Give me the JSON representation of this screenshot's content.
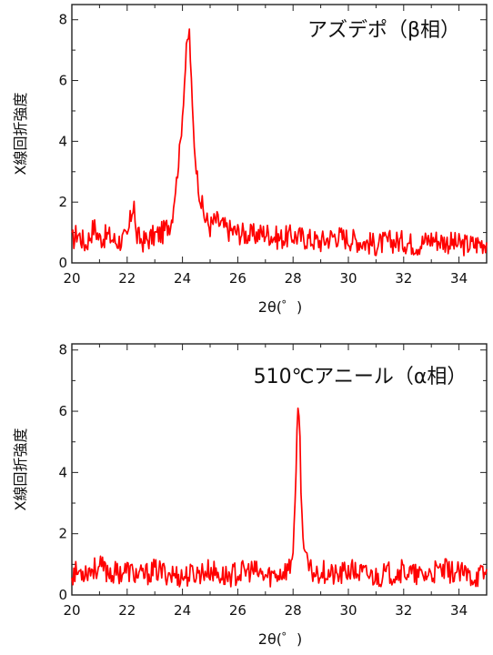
{
  "chart_data": [
    {
      "type": "line",
      "title": "アズデポ（β相）",
      "xlabel": "2θ(゜)",
      "ylabel": "X線回折強度",
      "xlim": [
        20,
        35
      ],
      "ylim": [
        0,
        8.5
      ],
      "xticks": [
        "20",
        "22",
        "24",
        "26",
        "28",
        "30",
        "32",
        "34"
      ],
      "yticks": [
        "0",
        "2",
        "4",
        "6",
        "8"
      ],
      "grid": false,
      "legend": "none",
      "color": "#ff0000",
      "series": [
        {
          "x": [
            20.0,
            20.2,
            20.5,
            20.8,
            21.0,
            21.3,
            21.6,
            22.0,
            22.25,
            22.3,
            22.6,
            23.0,
            23.3,
            23.6,
            23.8,
            23.95,
            24.05,
            24.15,
            24.25,
            24.35,
            24.45,
            24.6,
            24.8,
            25.0,
            25.2,
            25.6,
            26.0,
            26.5,
            27.0,
            27.5,
            28.0,
            28.5,
            29.0,
            29.5,
            30.0,
            30.5,
            31.0,
            31.5,
            32.0,
            32.5,
            33.0,
            33.5,
            34.0,
            34.5,
            35.0
          ],
          "y": [
            0.7,
            1.0,
            0.6,
            1.2,
            0.8,
            0.9,
            0.7,
            0.8,
            2.1,
            0.9,
            0.7,
            0.9,
            1.0,
            1.4,
            2.8,
            4.2,
            5.6,
            7.1,
            7.6,
            5.2,
            3.6,
            2.3,
            1.5,
            1.2,
            1.4,
            1.1,
            1.0,
            0.9,
            1.0,
            0.8,
            0.9,
            0.8,
            0.7,
            0.9,
            0.8,
            0.7,
            0.6,
            0.7,
            0.7,
            0.6,
            0.8,
            0.7,
            0.6,
            0.6,
            0.7
          ]
        }
      ]
    },
    {
      "type": "line",
      "title": "510℃アニール（α相）",
      "xlabel": "2θ(゜)",
      "ylabel": "X線回折強度",
      "xlim": [
        20,
        35
      ],
      "ylim": [
        0,
        8.2
      ],
      "xticks": [
        "20",
        "22",
        "24",
        "26",
        "28",
        "30",
        "32",
        "34"
      ],
      "yticks": [
        "0",
        "2",
        "4",
        "6",
        "8"
      ],
      "grid": false,
      "legend": "none",
      "color": "#ff0000",
      "series": [
        {
          "x": [
            20.0,
            20.5,
            21.0,
            21.5,
            22.0,
            22.5,
            23.0,
            23.5,
            24.0,
            24.5,
            25.0,
            25.5,
            26.0,
            26.5,
            27.0,
            27.5,
            27.9,
            28.0,
            28.1,
            28.15,
            28.2,
            28.25,
            28.3,
            28.4,
            28.5,
            28.6,
            28.8,
            29.0,
            29.3,
            29.6,
            30.0,
            30.5,
            31.0,
            31.5,
            32.0,
            32.5,
            33.0,
            33.5,
            34.0,
            34.5,
            35.0
          ],
          "y": [
            0.7,
            0.8,
            0.9,
            0.7,
            0.8,
            0.6,
            0.8,
            0.7,
            0.6,
            0.7,
            0.8,
            0.6,
            0.7,
            0.8,
            0.6,
            0.7,
            0.9,
            1.6,
            3.5,
            5.5,
            6.5,
            5.0,
            2.8,
            1.6,
            1.0,
            0.8,
            0.7,
            0.8,
            0.7,
            0.6,
            0.8,
            0.7,
            0.6,
            0.7,
            0.8,
            0.6,
            0.7,
            0.8,
            0.7,
            0.6,
            0.7
          ]
        }
      ]
    }
  ]
}
